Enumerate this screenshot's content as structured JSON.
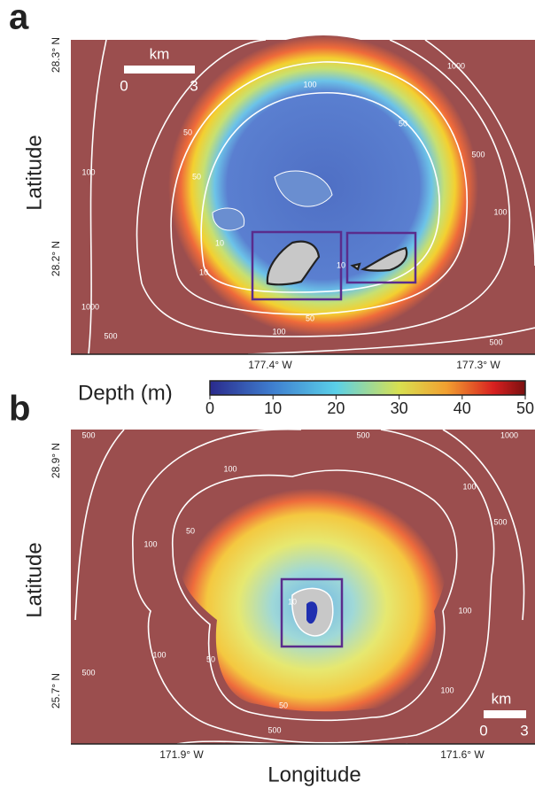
{
  "panels": [
    {
      "label": "a",
      "y_axis_label": "Latitude",
      "y_ticks": [
        "28.3° N",
        "28.2° N"
      ],
      "x_ticks": [
        "177.4° W",
        "177.3° W"
      ],
      "scale_bar": {
        "unit": "km",
        "start": "0",
        "end": "3"
      },
      "contour_labels": [
        "10",
        "10",
        "50",
        "50",
        "100",
        "100",
        "500",
        "1000",
        "10",
        "50",
        "100",
        "500",
        "1000",
        "50",
        "100",
        "500"
      ]
    },
    {
      "label": "b",
      "y_axis_label": "Latitude",
      "y_ticks": [
        "28.9° N",
        "25.7° N"
      ],
      "x_ticks": [
        "171.9° W",
        "171.6° W"
      ],
      "x_axis_label": "Longitude",
      "scale_bar": {
        "unit": "km",
        "start": "0",
        "end": "3"
      },
      "contour_labels": [
        "500",
        "100",
        "500",
        "1000",
        "100",
        "100",
        "50",
        "100",
        "500",
        "50",
        "100",
        "500",
        "50",
        "100",
        "500",
        "10"
      ]
    }
  ],
  "colorbar": {
    "label": "Depth (m)",
    "lim": [
      0,
      50
    ],
    "ticks": [
      0,
      10,
      20,
      30,
      40,
      50
    ]
  }
}
